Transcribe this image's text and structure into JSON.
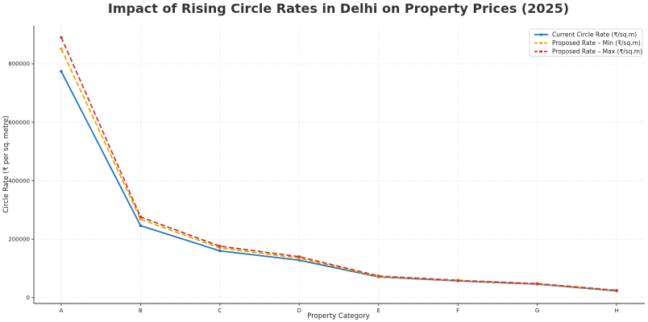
{
  "chart_data": {
    "type": "line",
    "title": "Impact of Rising Circle Rates in Delhi on Property Prices (2025)",
    "xlabel": "Property Category",
    "ylabel": "Circle Rate (₹ per sq. metre)",
    "categories": [
      "A",
      "B",
      "C",
      "D",
      "E",
      "F",
      "G",
      "H"
    ],
    "ylim": [
      -20000,
      930000
    ],
    "yticks": [
      0,
      200000,
      400000,
      600000,
      800000
    ],
    "grid": true,
    "legend_position": "top-right",
    "series": [
      {
        "name": "Current Circle Rate (₹/sq.m)",
        "values": [
          774000,
          246000,
          160000,
          128000,
          71000,
          57000,
          46000,
          23000
        ],
        "color": "#1f77c4",
        "style": "solid"
      },
      {
        "name": "Proposed Rate – Min (₹/sq.m)",
        "values": [
          851000,
          268000,
          170000,
          135000,
          72000,
          58000,
          47000,
          24000
        ],
        "color": "#f0a500",
        "style": "dashed"
      },
      {
        "name": "Proposed Rate – Max (₹/sq.m)",
        "values": [
          890000,
          276000,
          176000,
          140000,
          74000,
          59000,
          48000,
          25000
        ],
        "color": "#cc3a33",
        "style": "dashed"
      }
    ]
  }
}
